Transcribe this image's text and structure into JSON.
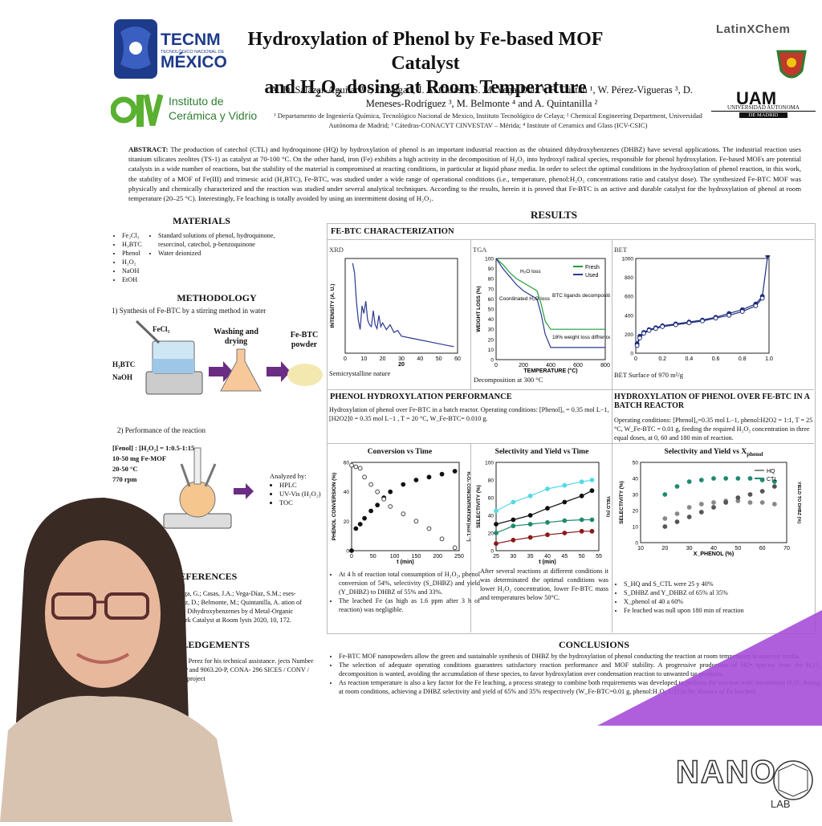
{
  "title_line1": "Hydroxylation of Phenol by Fe-based MOF Catalyst",
  "title_line2": "and H₂O₂ dosing at Room Temperature",
  "logos": {
    "tecnm_name": "TECNM",
    "tecnm_sub": "TECNOLÓGICO NACIONAL DE",
    "tecnm_mexico": "MÉXICO",
    "icv_line1": "Instituto de",
    "icv_line2": "Cerámica y Vidrio",
    "latinxchem": "LatinXChem",
    "uam_line1": "UNIVERSIDAD AUTONOMA",
    "uam_line2": "DE MADRID",
    "nano": "NANO",
    "lab": "LAB"
  },
  "authors": "A. D. Salazar-Aguilar ¹˒², G. Vega ², J. A. Casas ², S. M. Vega-Díaz ¹, F. Tristan ¹, W. Pérez-Vigueras ³, D. Meneses-Rodríguez ³, M. Belmonte ⁴ and A. Quintanilla ²",
  "affiliations": "¹ Departamento de Ingeniería Química, Tecnológico Nacional de Mexico, Instituto Tecnológico de Celaya; ² Chemical Engineering Department, Universidad Autónoma de Madrid; ³ Cátedras-CONACYT CINVESTAV – Mérida; ⁴ Institute of Ceramics and Glass (ICV-CSIC)",
  "abstract_label": "ABSTRACT:",
  "abstract": "The production of catechol (CTL) and hydroquinone (HQ) by hydroxylation of phenol is an important industrial reaction as the obtained dihydroxybenzenes (DHBZ) have several applications. The industrial reaction uses titanium silicates zeolites (TS-1) as catalyst at 70-100 °C. On the other hand, iron (Fe) exhibits a high activity in the decomposition of H₂O₂ into hydroxyl radical species, responsible for phenol hydroxylation. Fe-based MOFs are potential catalysts in a wide number of reactions, but the stability of the material is compromised at reacting conditions, in particular at liquid phase media. In order to select the optimal conditions in the hydroxylation of phenol reaction, in this work, the stability of a MOF of Fe(III) and trimesic acid (H₃BTC), Fe-BTC, was studied under a wide range of operational conditions (i.e., temperature, phenol:H₂O₂ concentrations ratio and catalyst dose). The synthesized Fe-BTC MOF was physically and chemically characterized and the reaction was studied under several analytical techniques. According to the results, herein it is proved that Fe-BTC is an active and durable catalyst for the hydroxylation of phenol at room temperature (20–25 °C). Interestingly, Fe leaching is totally avoided by using an intermittent dosing of H₂O₂.",
  "materials": {
    "heading": "MATERIALS",
    "list1": [
      "Fe₂Cl₃",
      "H₃BTC",
      "Phenol",
      "H₂O₂",
      "NaOH",
      "EtOH"
    ],
    "list2": [
      "Standard solutions of phenol, hydroquinone, resorcinol, catechol, p-benzoquinone",
      "Water deionized"
    ]
  },
  "methodology": {
    "heading": "METHODOLOGY",
    "step1": "1) Synthesis of Fe-BTC by a stirring method in water",
    "fecl3": "FeCl₃",
    "h3btc": "H₃BTC",
    "naoh": "NaOH",
    "washing": "Washing and drying",
    "product": "Fe-BTC powder",
    "step2": "2) Performance of the reaction",
    "conditions": [
      "[Fenol] : [H₂O₂] = 1:0.5-1:15",
      "10-50 mg Fe-MOF",
      "20-50 °C",
      "770 rpm"
    ],
    "analyzed_by": "Analyzed by:",
    "analysis": [
      "HPLC",
      "UV-Vis (H₂O₂)",
      "TOC"
    ]
  },
  "references": {
    "heading": "REFERENCES",
    "text": "A.D.; Vega, G.; Casas, J.A.; Vega-Díaz, S.M.; eses-Rodríguez, D.; Belmonte, M.; Quintanilla, A. ation of Phenol to Dihydroxybenzenes by d Metal-Organic Framework Catalyst at Room lysts 2020, 10, 172."
  },
  "acknowledgements": {
    "heading": "OWLEDGEMENTS",
    "text": "nk Alvaro Perez for his technical assistance. jects Number 7936.20-P and 9063.20-P, CONA- 296 SICES / CONV / 443/2019 project"
  },
  "results": {
    "heading": "RESULTS",
    "characterization": "FE-BTC CHARACTERIZATION",
    "xrd_label": "XRD",
    "tga_label": "TGA",
    "bet_label": "BET",
    "xrd_caption": "Semicrystalline nature",
    "tga_caption": "Decomposition at 300 °C",
    "bet_caption": "BET Surface of  970 m²/g",
    "perf_heading": "PHENOL HYDROXYLATION PERFORMANCE",
    "perf_text": "Hydroxylation of phenol over Fe-BTC in a batch reactor. Operating conditions: [Phenol]₀ = 0.35 mol L−1, [H2O2]0 = 0.35 mol L−1 , T = 20 °C, W_Fe-BTC= 0.010 g.",
    "batch_heading": "HYDROXYLATION OF PHENOL OVER FE-BTC IN A BATCH REACTOR",
    "batch_text": "Operating conditions: [Phenol]₀=0.35 mol L−1, phenol:H2O2 = 1:1, T = 25 °C, W_Fe-BTC = 0.01 g, feeding the required H₂O₂ concentration in three equal doses, at 0, 60 and 180 min of reaction.",
    "conv_title": "Conversion vs Time",
    "sel_title": "Selectivity and Yield vs Time",
    "selx_title": "Selectivity and Yield vs X",
    "selx_sub": "phenol",
    "conv_notes": [
      "At 4 h of reaction total consumption of H₂O₂, phenol conversion of 54%, selectivity (S_DHBZ) and yield (Y_DHBZ) to DHBZ of 55% and 33%.",
      "The leached Fe (as high as 1.6 ppm after 3 h of reaction) was negligible."
    ],
    "sel_note": "After several reactions at different conditions it was determinated the optimal conditions was lower H₂O₂ concentration, lower Fe-BTC mass and temperatures below 50°C.",
    "selx_notes": [
      "S_HQ and S_CTL were 25 y 40%",
      "S_DHBZ and Y_DHBZ of  65% al 35%",
      "X_phenol of 40 a 60%",
      "Fe leached was null upon 180 min of reaction"
    ]
  },
  "conclusions": {
    "heading": "CONCLUSIONS",
    "items": [
      "Fe-BTC MOF nanopowders allow the green and sustainable synthesis of DHBZ by the hydroxylation of phenol conducting the reaction at room temperature in aqueous media.",
      "The selection of adequate operating conditions guarantees satisfactory reaction performance and MOF stability. A progressive production of HO• species from the H₂O₂ decomposition is wanted, avoiding the accumulation of these species, to favor hydroxylation over condensation reaction to unwanted tar products.",
      "As reaction temperature is also a key factor for the Fe leaching, a process strategy to combine both requirements was developed to perform the reaction with intermittent H₂O₂ dosing at room conditions, achieving a DHBZ selectivity and yield of 65% and 35% respectively (W_Fe-BTC=0.01 g, phenol:H₂O₂ 1:1) in the absence of Fe leached."
    ]
  },
  "chart_data": [
    {
      "type": "line",
      "title": "",
      "xlabel": "20",
      "ylabel": "INTENSITY (A. U.)",
      "xlim": [
        0,
        60
      ],
      "x_ticks": [
        "0",
        "10",
        "20",
        "30",
        "40",
        "50",
        "60"
      ],
      "series": [
        {
          "x": [
            4,
            5,
            6,
            7,
            8,
            9,
            10,
            11,
            12,
            13,
            14,
            15,
            16,
            17,
            18,
            19,
            20,
            22,
            24,
            26,
            28,
            30,
            35,
            40,
            45,
            50,
            55,
            58
          ],
          "values": [
            0.95,
            0.85,
            0.55,
            0.35,
            0.25,
            0.5,
            0.42,
            0.55,
            0.35,
            0.3,
            0.28,
            0.45,
            0.3,
            0.26,
            0.4,
            0.28,
            0.32,
            0.25,
            0.3,
            0.22,
            0.24,
            0.18,
            0.16,
            0.14,
            0.12,
            0.1,
            0.08,
            0.07
          ]
        }
      ]
    },
    {
      "type": "line",
      "title": "",
      "xlabel": "TEMPERATURE (°C)",
      "ylabel": "WEIGHT LOSS (%)",
      "xlim": [
        0,
        800
      ],
      "ylim": [
        100,
        0
      ],
      "x_ticks": [
        "0",
        "200",
        "400",
        "600",
        "800"
      ],
      "y_ticks": [
        "0",
        "10",
        "20",
        "30",
        "40",
        "50",
        "60",
        "70",
        "80",
        "90",
        "100"
      ],
      "legend": "top-right",
      "annotations": [
        "H₂O loss",
        "Coordinated H₂O loss",
        "BTC ligands decomposition",
        "18% weight loss diffrence"
      ],
      "series": [
        {
          "name": "Fresh",
          "x": [
            0,
            50,
            100,
            150,
            200,
            250,
            300,
            330,
            360,
            400,
            500,
            600,
            700,
            800
          ],
          "values": [
            0,
            6,
            14,
            20,
            24,
            28,
            32,
            45,
            62,
            70,
            70,
            70,
            70,
            70
          ]
        },
        {
          "name": "Used",
          "x": [
            0,
            50,
            100,
            150,
            200,
            250,
            300,
            330,
            360,
            400,
            500,
            600,
            700,
            800
          ],
          "values": [
            0,
            10,
            18,
            26,
            32,
            36,
            40,
            55,
            75,
            88,
            88,
            88,
            88,
            88
          ]
        }
      ]
    },
    {
      "type": "scatter",
      "title": "",
      "xlabel": "",
      "ylabel": "",
      "xlim": [
        0,
        1.0
      ],
      "ylim": [
        0,
        1000
      ],
      "x_ticks": [
        "0",
        "0.2",
        "0.4",
        "0.6",
        "0.8",
        "1.0"
      ],
      "y_ticks": [
        "0",
        "200",
        "400",
        "600",
        "800",
        "1000"
      ],
      "series": [
        {
          "x": [
            0.01,
            0.03,
            0.06,
            0.1,
            0.15,
            0.2,
            0.3,
            0.4,
            0.5,
            0.6,
            0.7,
            0.8,
            0.9,
            0.95,
            0.99
          ],
          "values": [
            100,
            180,
            220,
            250,
            270,
            290,
            310,
            330,
            350,
            380,
            420,
            460,
            520,
            600,
            1030
          ]
        },
        {
          "x": [
            0.01,
            0.03,
            0.06,
            0.1,
            0.15,
            0.2,
            0.3,
            0.4,
            0.5,
            0.6,
            0.7,
            0.8,
            0.9,
            0.95
          ],
          "values": [
            80,
            160,
            210,
            240,
            260,
            280,
            300,
            320,
            340,
            370,
            400,
            440,
            500,
            580
          ]
        }
      ]
    },
    {
      "type": "scatter",
      "title": "Conversion vs Time",
      "xlabel": "t (min)",
      "ylabel": "PHENOL CONVERSION (%)",
      "y2label": "H₂O₂ CONCENTRATION (mol L⁻¹)",
      "xlim": [
        0,
        250
      ],
      "ylim": [
        0,
        60
      ],
      "x_ticks": [
        "0",
        "50",
        "100",
        "150",
        "200",
        "250"
      ],
      "y_ticks": [
        "0",
        "20",
        "40",
        "60"
      ],
      "series": [
        {
          "name": "",
          "x": [
            0,
            10,
            20,
            30,
            45,
            60,
            75,
            90,
            120,
            150,
            180,
            210,
            240
          ],
          "values": [
            0,
            15,
            18,
            22,
            27,
            31,
            36,
            40,
            45,
            48,
            50,
            52,
            54
          ]
        },
        {
          "name": "",
          "x": [
            0,
            10,
            20,
            30,
            45,
            60,
            75,
            90,
            120,
            150,
            180,
            210,
            240
          ],
          "values": [
            58,
            57,
            56,
            50,
            45,
            40,
            35,
            30,
            25,
            20,
            15,
            8,
            2
          ]
        }
      ]
    },
    {
      "type": "scatter",
      "title": "Selectivity and Yield vs Time",
      "xlabel": "t (min)",
      "ylabel": "SELECTIVITY (%)",
      "y2label": "YIELD (%)",
      "xlim": [
        25,
        55
      ],
      "ylim": [
        0,
        100
      ],
      "x_ticks": [
        "25",
        "30",
        "35",
        "40",
        "45",
        "50",
        "55"
      ],
      "y_ticks": [
        "0",
        "20",
        "40",
        "60",
        "80",
        "100"
      ],
      "series": [
        {
          "name": "",
          "x": [
            25,
            30,
            35,
            40,
            45,
            50,
            53
          ],
          "values": [
            8,
            12,
            15,
            18,
            20,
            22,
            22
          ]
        },
        {
          "name": "",
          "x": [
            25,
            30,
            35,
            40,
            45,
            50,
            53
          ],
          "values": [
            20,
            28,
            30,
            32,
            34,
            35,
            35
          ]
        },
        {
          "name": "",
          "x": [
            25,
            30,
            35,
            40,
            45,
            50,
            53
          ],
          "values": [
            45,
            55,
            62,
            70,
            74,
            78,
            80
          ]
        },
        {
          "name": "",
          "x": [
            25,
            30,
            35,
            40,
            45,
            50,
            53
          ],
          "values": [
            30,
            35,
            40,
            48,
            55,
            62,
            68
          ]
        }
      ]
    },
    {
      "type": "scatter",
      "title": "Selectivity and Yield vs X phenol",
      "xlabel": "X_PHENOL (%)",
      "ylabel": "SELECTIVITY (%)",
      "y2label": "YIELD TO DHBZ (%)",
      "xlim": [
        10,
        70
      ],
      "ylim": [
        0,
        50
      ],
      "x_ticks": [
        "10",
        "20",
        "30",
        "40",
        "50",
        "60",
        "70"
      ],
      "y_ticks": [
        "0",
        "10",
        "20",
        "30",
        "40",
        "50"
      ],
      "legend": "bottom-right",
      "series": [
        {
          "name": "HQ",
          "x": [
            20,
            25,
            30,
            35,
            40,
            45,
            50,
            55,
            60,
            65
          ],
          "values": [
            15,
            18,
            22,
            24,
            25,
            26,
            26,
            25,
            25,
            24
          ]
        },
        {
          "name": "CTL",
          "x": [
            20,
            25,
            30,
            35,
            40,
            45,
            50,
            55,
            60,
            65
          ],
          "values": [
            30,
            35,
            38,
            39,
            40,
            40,
            40,
            40,
            39,
            38
          ]
        },
        {
          "name": "",
          "x": [
            20,
            25,
            30,
            35,
            40,
            45,
            50,
            55,
            60,
            65
          ],
          "values": [
            10,
            13,
            16,
            19,
            22,
            25,
            28,
            30,
            32,
            35
          ]
        }
      ]
    }
  ]
}
